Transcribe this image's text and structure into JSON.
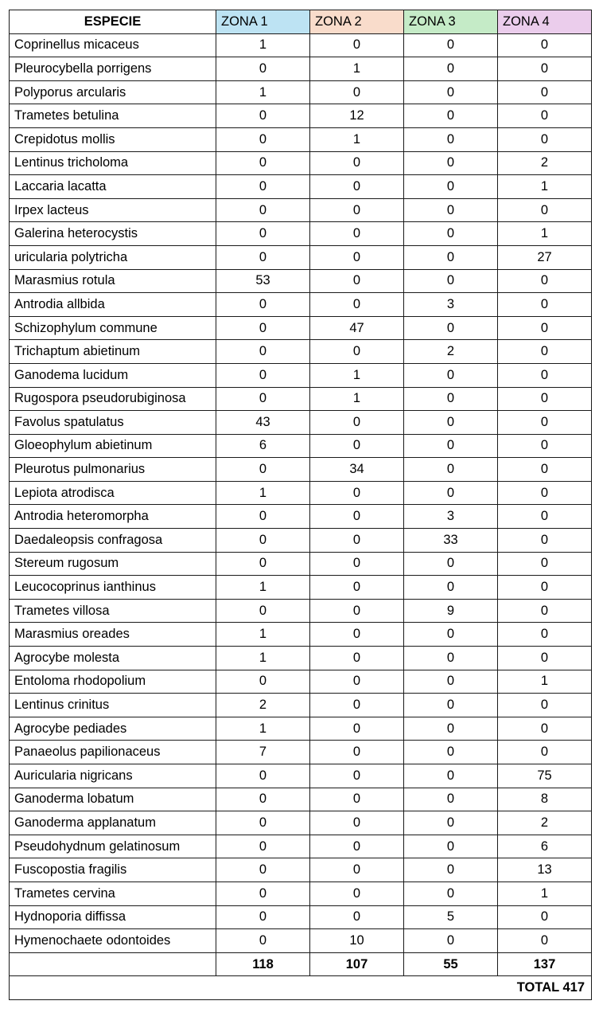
{
  "header": {
    "species": "ESPECIE",
    "zones": [
      {
        "label": "ZONA 1",
        "color": "#bde3f3"
      },
      {
        "label": "ZONA 2",
        "color": "#f9dccb"
      },
      {
        "label": "ZONA 3",
        "color": "#c5ebc7"
      },
      {
        "label": "ZONA 4",
        "color": "#ebcdec"
      }
    ]
  },
  "rows": [
    {
      "species": "Coprinellus micaceus",
      "values": [
        "1",
        "0",
        "0",
        "0"
      ]
    },
    {
      "species": "Pleurocybella porrigens",
      "values": [
        "0",
        "1",
        "0",
        "0"
      ]
    },
    {
      "species": "Polyporus arcularis",
      "values": [
        "1",
        "0",
        "0",
        "0"
      ]
    },
    {
      "species": "Trametes betulina",
      "values": [
        "0",
        "12",
        "0",
        "0"
      ]
    },
    {
      "species": "Crepidotus mollis",
      "values": [
        "0",
        "1",
        "0",
        "0"
      ]
    },
    {
      "species": "Lentinus tricholoma",
      "values": [
        "0",
        "0",
        "0",
        "2"
      ]
    },
    {
      "species": "Laccaria lacatta",
      "values": [
        "0",
        "0",
        "0",
        "1"
      ]
    },
    {
      "species": "Irpex lacteus",
      "values": [
        "0",
        "0",
        "0",
        "0"
      ]
    },
    {
      "species": "Galerina heterocystis",
      "values": [
        "0",
        "0",
        "0",
        "1"
      ]
    },
    {
      "species": "uricularia polytricha",
      "values": [
        "0",
        "0",
        "0",
        "27"
      ]
    },
    {
      "species": "Marasmius rotula",
      "values": [
        "53",
        "0",
        "0",
        "0"
      ]
    },
    {
      "species": "Antrodia allbida",
      "values": [
        "0",
        "0",
        "3",
        "0"
      ]
    },
    {
      "species": "Schizophylum commune",
      "values": [
        "0",
        "47",
        "0",
        "0"
      ]
    },
    {
      "species": "Trichaptum abietinum",
      "values": [
        "0",
        "0",
        "2",
        "0"
      ]
    },
    {
      "species": "Ganodema lucidum",
      "values": [
        "0",
        "1",
        "0",
        "0"
      ]
    },
    {
      "species": "Rugospora pseudorubiginosa",
      "values": [
        "0",
        "1",
        "0",
        "0"
      ]
    },
    {
      "species": "Favolus spatulatus",
      "values": [
        "43",
        "0",
        "0",
        "0"
      ]
    },
    {
      "species": "Gloeophylum abietinum",
      "values": [
        "6",
        "0",
        "0",
        "0"
      ]
    },
    {
      "species": "Pleurotus pulmonarius",
      "values": [
        "0",
        "34",
        "0",
        "0"
      ]
    },
    {
      "species": "Lepiota atrodisca",
      "values": [
        "1",
        "0",
        "0",
        "0"
      ]
    },
    {
      "species": "Antrodia heteromorpha",
      "values": [
        "0",
        "0",
        "3",
        "0"
      ]
    },
    {
      "species": "Daedaleopsis confragosa",
      "values": [
        "0",
        "0",
        "33",
        "0"
      ]
    },
    {
      "species": "Stereum rugosum",
      "values": [
        "0",
        "0",
        "0",
        "0"
      ]
    },
    {
      "species": "Leucocoprinus ianthinus",
      "values": [
        "1",
        "0",
        "0",
        "0"
      ]
    },
    {
      "species": "Trametes villosa",
      "values": [
        "0",
        "0",
        "9",
        "0"
      ]
    },
    {
      "species": "Marasmius oreades",
      "values": [
        "1",
        "0",
        "0",
        "0"
      ]
    },
    {
      "species": "Agrocybe molesta",
      "values": [
        "1",
        "0",
        "0",
        "0"
      ]
    },
    {
      "species": "Entoloma rhodopolium",
      "values": [
        "0",
        "0",
        "0",
        "1"
      ]
    },
    {
      "species": "Lentinus crinitus",
      "values": [
        "2",
        "0",
        "0",
        "0"
      ]
    },
    {
      "species": "Agrocybe pediades",
      "values": [
        "1",
        "0",
        "0",
        "0"
      ]
    },
    {
      "species": "Panaeolus papilionaceus",
      "values": [
        "7",
        "0",
        "0",
        "0"
      ]
    },
    {
      "species": "Auricularia nigricans",
      "values": [
        "0",
        "0",
        "0",
        "75"
      ]
    },
    {
      "species": "Ganoderma lobatum",
      "values": [
        "0",
        "0",
        "0",
        "8"
      ]
    },
    {
      "species": "Ganoderma applanatum",
      "values": [
        "0",
        "0",
        "0",
        "2"
      ]
    },
    {
      "species": "Pseudohydnum gelatinosum",
      "values": [
        "0",
        "0",
        "0",
        "6"
      ]
    },
    {
      "species": "Fuscopostia fragilis",
      "values": [
        "0",
        "0",
        "0",
        "13"
      ]
    },
    {
      "species": "Trametes cervina",
      "values": [
        "0",
        "0",
        "0",
        "1"
      ]
    },
    {
      "species": "Hydnoporia diffissa",
      "values": [
        "0",
        "0",
        "5",
        "0"
      ]
    },
    {
      "species": "Hymenochaete odontoides",
      "values": [
        "0",
        "10",
        "0",
        "0"
      ]
    }
  ],
  "totals": [
    "118",
    "107",
    "55",
    "137"
  ],
  "grand_total": "TOTAL 417"
}
